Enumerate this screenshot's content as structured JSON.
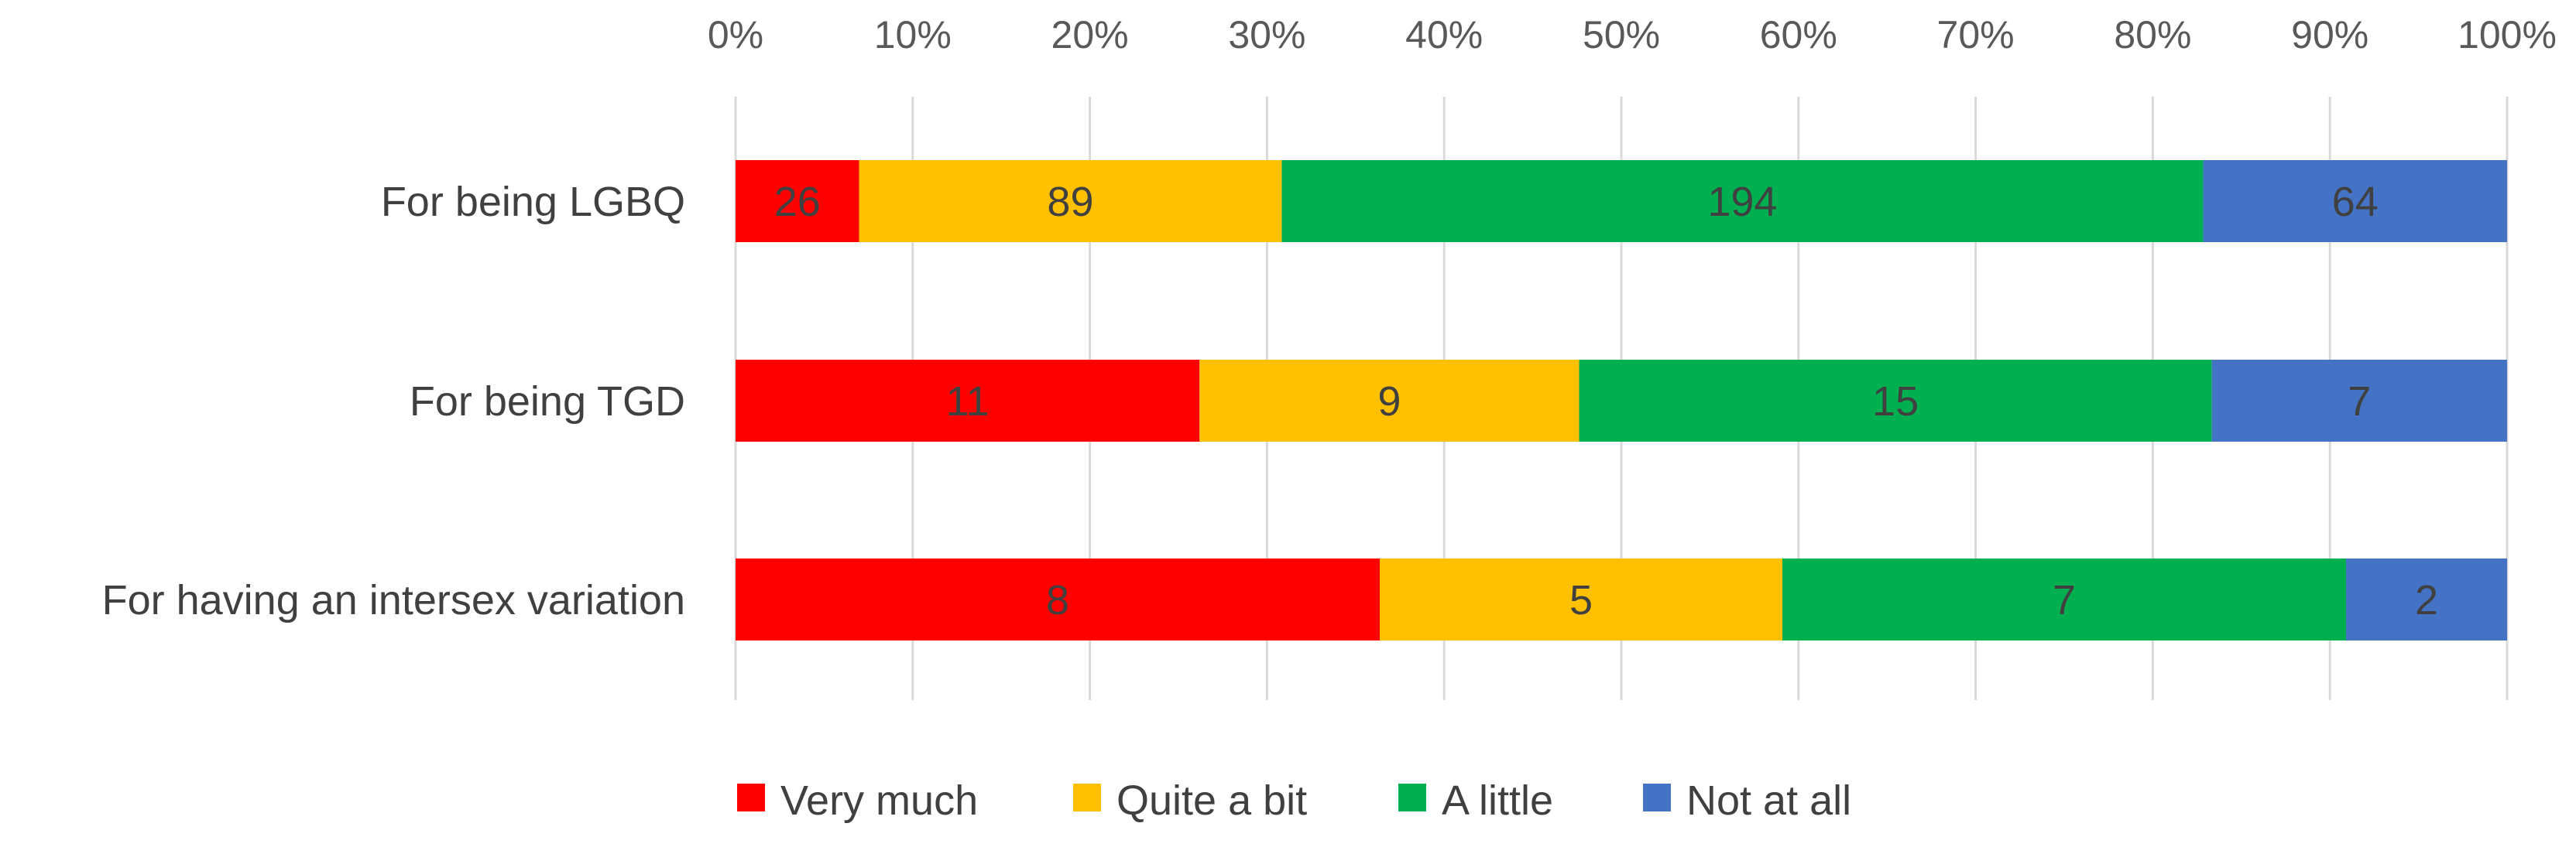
{
  "chart_data": {
    "type": "bar",
    "orientation": "horizontal",
    "stacked": "percent",
    "categories": [
      "For being LGBQ",
      "For being TGD",
      "For having an intersex variation"
    ],
    "series": [
      {
        "name": "Very much",
        "color": "#ff0000",
        "values": [
          26,
          11,
          8
        ]
      },
      {
        "name": "Quite a bit",
        "color": "#ffc000",
        "values": [
          89,
          9,
          5
        ]
      },
      {
        "name": "A little",
        "color": "#00b050",
        "values": [
          194,
          15,
          7
        ]
      },
      {
        "name": "Not at all",
        "color": "#4472c4",
        "values": [
          64,
          7,
          2
        ]
      }
    ],
    "x_ticks": [
      "0%",
      "10%",
      "20%",
      "30%",
      "40%",
      "50%",
      "60%",
      "70%",
      "80%",
      "90%",
      "100%"
    ],
    "xlim": [
      0,
      100
    ],
    "x_axis_position": "top",
    "grid": "vertical",
    "legend": "bottom"
  }
}
